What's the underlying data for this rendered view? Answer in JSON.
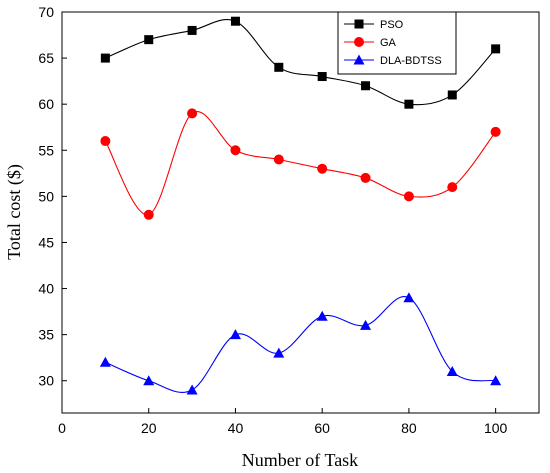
{
  "chart_data": {
    "type": "line",
    "xlabel": "Number of Task",
    "ylabel": "Total cost ($)",
    "xlim": [
      0,
      110
    ],
    "ylim": [
      26.5,
      70
    ],
    "xticks": [
      0,
      20,
      40,
      60,
      80,
      100
    ],
    "yticks": [
      30,
      35,
      40,
      45,
      50,
      55,
      60,
      65,
      70
    ],
    "grid": false,
    "legend": "top-right",
    "x": [
      10,
      20,
      30,
      40,
      50,
      60,
      70,
      80,
      90,
      100
    ],
    "series": [
      {
        "name": "PSO",
        "color": "#000000",
        "marker": "square",
        "values": [
          65,
          67,
          68,
          69,
          64,
          63,
          62,
          60,
          61,
          66
        ]
      },
      {
        "name": "GA",
        "color": "#ff0000",
        "marker": "circle",
        "values": [
          56,
          48,
          59,
          55,
          54,
          53,
          52,
          50,
          51,
          57
        ]
      },
      {
        "name": "DLA-BDTSS",
        "color": "#0000ff",
        "marker": "triangle",
        "values": [
          32,
          30,
          29,
          35,
          33,
          37,
          36,
          39,
          31,
          30
        ]
      }
    ]
  }
}
